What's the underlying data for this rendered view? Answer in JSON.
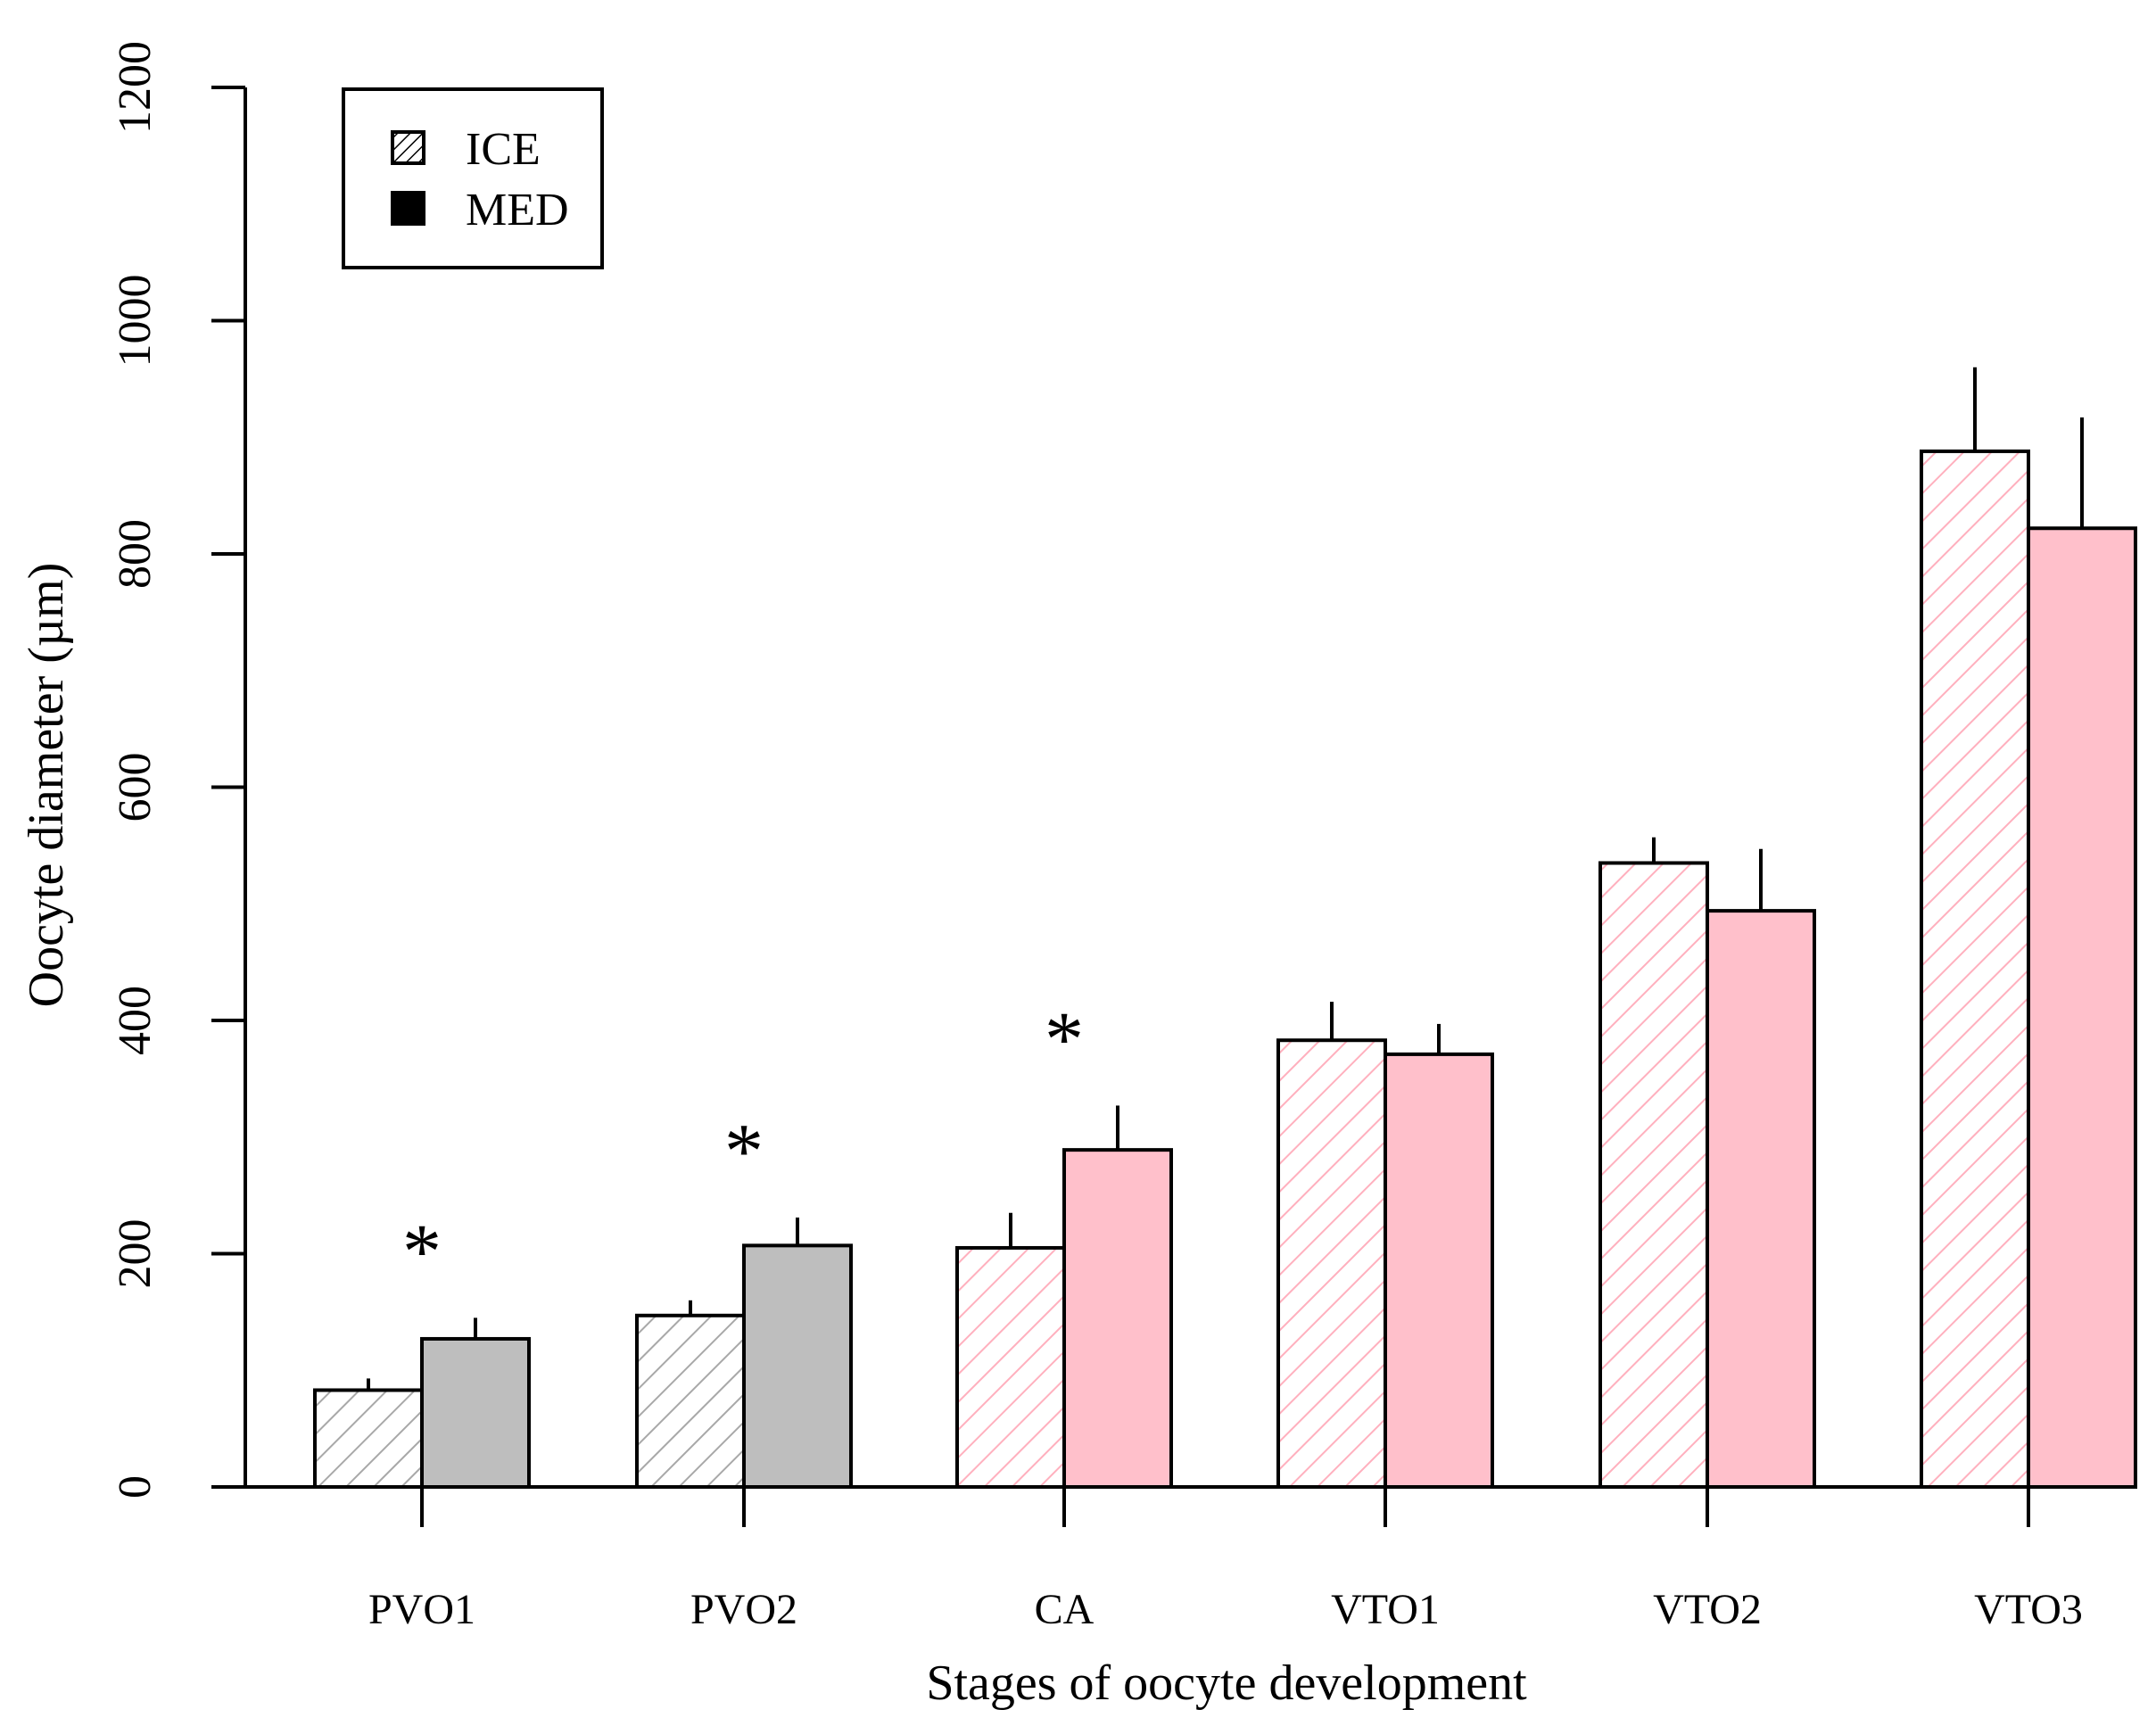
{
  "chart_data": {
    "type": "bar",
    "title": "",
    "xlabel": "Stages of oocyte development",
    "ylabel": "Oocyte diameter (µm)",
    "ylim": [
      0,
      1200
    ],
    "yticks": [
      0,
      200,
      400,
      600,
      800,
      1000,
      1200
    ],
    "categories": [
      "PVO1",
      "PVO2",
      "CA",
      "VTO1",
      "VTO2",
      "VTO3"
    ],
    "series": [
      {
        "name": "ICE",
        "fill": "hatched",
        "values": [
          83,
          147,
          205,
          383,
          535,
          888
        ],
        "error": [
          10,
          13,
          30,
          33,
          22,
          72
        ]
      },
      {
        "name": "MED",
        "fill": "solid",
        "values": [
          127,
          207,
          289,
          371,
          494,
          822
        ],
        "error": [
          18,
          24,
          38,
          26,
          53,
          95
        ]
      }
    ],
    "group_colors": [
      "gray",
      "gray",
      "pink",
      "pink",
      "pink",
      "pink"
    ],
    "significance_marker": "*",
    "significant_categories": [
      "PVO1",
      "PVO2",
      "CA"
    ],
    "legend": {
      "position": "top-left",
      "entries": [
        "ICE",
        "MED"
      ]
    },
    "grid": false
  },
  "colors": {
    "gray": "#bebebe",
    "gray_hatch": "#a8a8a8",
    "pink": "#ffc0cb",
    "pink_hatch": "#ffb0be",
    "axis": "#000000"
  }
}
